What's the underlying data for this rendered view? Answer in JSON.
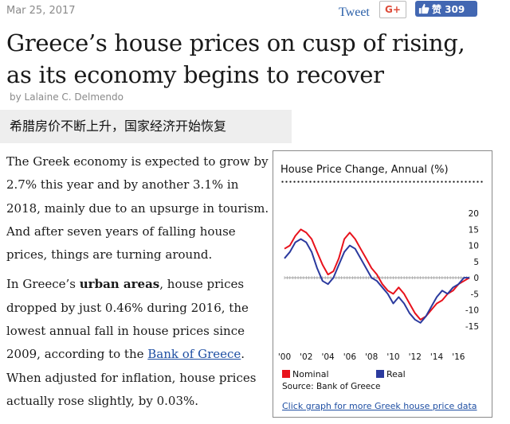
{
  "header": {
    "date": "Mar 25, 2017",
    "tweet_label": "Tweet",
    "gplus_label": "G+",
    "like_label": "赞 309"
  },
  "article": {
    "title_line1": "Greece’s house prices on cusp of rising,",
    "title_line2": "as its economy begins to recover",
    "byline": "by Lalaine C. Delmendo",
    "chinese_title": "希腊房价不断上升，国家经济开始恢复",
    "p1": "The Greek economy is expected to grow by 2.7% this year and by another 3.1% in 2018, mainly due to an upsurge in tourism. And after seven years of falling house prices, things are turning around.",
    "p2_a": "In Greece’s ",
    "p2_bold": "urban areas",
    "p2_b": ", house prices dropped by just 0.46% during 2016, the lowest annual fall in house prices since 2009, according to the ",
    "p2_link": "Bank of Greece",
    "p2_c": ". When adjusted for inflation, house prices actually rose slightly, by 0.03%."
  },
  "colors": {
    "nominal": "#e8121c",
    "real": "#2b3a9e",
    "link": "#1f4fa3"
  },
  "chart_data": {
    "type": "line",
    "title": "House Price Change, Annual (%)",
    "y_ticks": [
      "20",
      "15",
      "10",
      "5",
      "0",
      "-5",
      "-10",
      "-15"
    ],
    "x_ticks": [
      "'00",
      "'02",
      "'04",
      "'06",
      "'08",
      "'10",
      "'12",
      "'14",
      "'16"
    ],
    "ylim": [
      -17,
      22
    ],
    "xlim": [
      2000,
      2017
    ],
    "legend_nominal": "Nominal",
    "legend_real": "Real",
    "source": "Source: Bank of Greece",
    "link_text": "Click graph for more Greek house price data",
    "series": [
      {
        "name": "Nominal",
        "x": [
          2000,
          2000.5,
          2001,
          2001.5,
          2002,
          2002.5,
          2003,
          2003.5,
          2004,
          2004.5,
          2005,
          2005.5,
          2006,
          2006.5,
          2007,
          2007.5,
          2008,
          2008.5,
          2009,
          2009.5,
          2010,
          2010.5,
          2011,
          2011.5,
          2012,
          2012.5,
          2013,
          2013.5,
          2014,
          2014.5,
          2015,
          2015.5,
          2016,
          2016.5,
          2017
        ],
        "values": [
          9,
          10,
          13,
          15,
          14,
          12,
          8,
          4,
          1,
          2,
          6,
          12,
          14,
          12,
          9,
          6,
          3,
          1,
          -2,
          -4,
          -5,
          -3,
          -5,
          -8,
          -11,
          -13,
          -12,
          -10,
          -8,
          -7,
          -5,
          -4,
          -2,
          -1,
          0
        ]
      },
      {
        "name": "Real",
        "x": [
          2000,
          2000.5,
          2001,
          2001.5,
          2002,
          2002.5,
          2003,
          2003.5,
          2004,
          2004.5,
          2005,
          2005.5,
          2006,
          2006.5,
          2007,
          2007.5,
          2008,
          2008.5,
          2009,
          2009.5,
          2010,
          2010.5,
          2011,
          2011.5,
          2012,
          2012.5,
          2013,
          2013.5,
          2014,
          2014.5,
          2015,
          2015.5,
          2016,
          2016.5,
          2017
        ],
        "values": [
          6,
          8,
          11,
          12,
          11,
          8,
          3,
          -1,
          -2,
          0,
          4,
          8,
          10,
          9,
          6,
          3,
          0,
          -1,
          -3,
          -5,
          -8,
          -6,
          -8,
          -11,
          -13,
          -14,
          -12,
          -9,
          -6,
          -4,
          -5,
          -3,
          -2,
          0,
          0
        ]
      }
    ]
  }
}
